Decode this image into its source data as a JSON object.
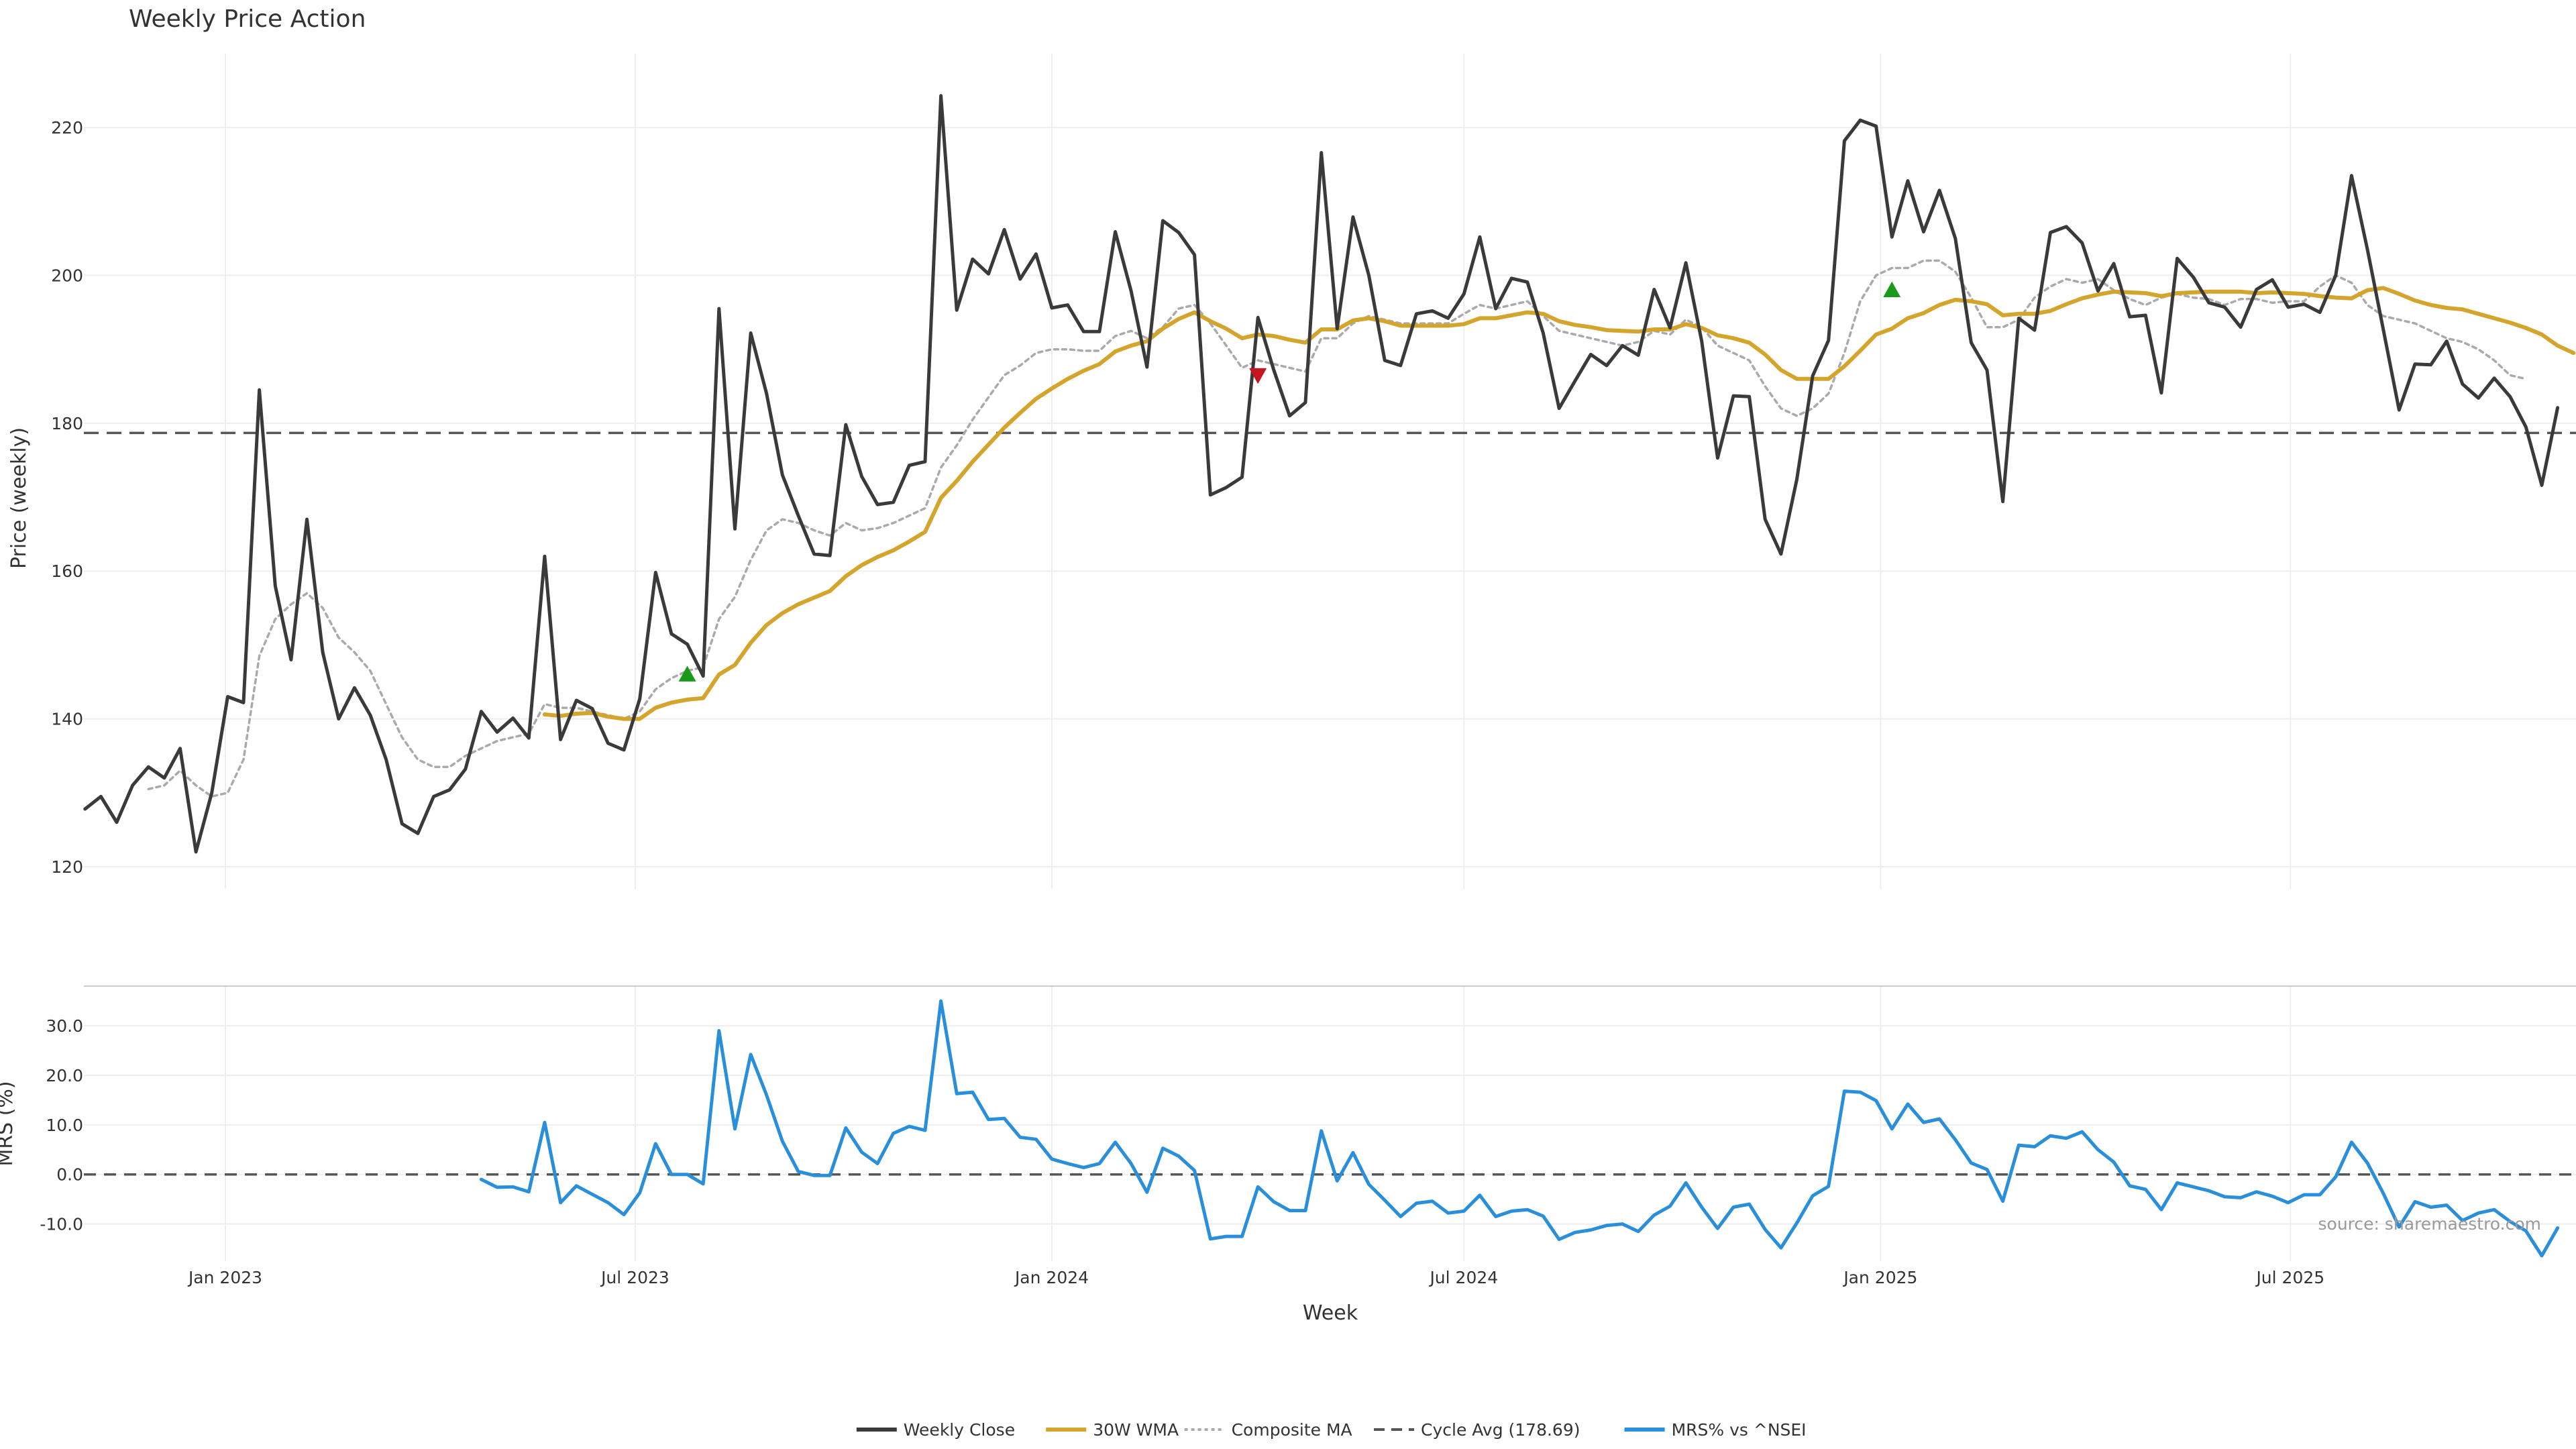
{
  "title": "Weekly Price Action",
  "source_note": "source: sharemaestro.com",
  "colors": {
    "close": "#3a3a3a",
    "wma": "#d4a52c",
    "composite": "#aaaaaa",
    "cycle": "#555555",
    "mrs": "#2a8fdb",
    "buy": "#1a9a1a",
    "sell": "#c8141e",
    "grid": "#eeeeee"
  },
  "chart_data": [
    {
      "type": "line",
      "title": "Weekly Price Action",
      "ylabel": "Price (weekly)",
      "xlabel": "",
      "ylim": [
        117,
        230
      ],
      "yticks": [
        120,
        140,
        160,
        180,
        200,
        220
      ],
      "grid": true,
      "x_start": "2022-10-31",
      "x_step_days": 7,
      "series": [
        {
          "name": "Weekly Close",
          "values": [
            127.8,
            129.5,
            126,
            131,
            133.5,
            132,
            136,
            122,
            130,
            143,
            142.2,
            184.5,
            158,
            148,
            167,
            149,
            140,
            144.2,
            140.5,
            134.5,
            125.8,
            124.5,
            129.5,
            130.4,
            133.2,
            141,
            138.2,
            140.1,
            137.4,
            162,
            137.2,
            142.5,
            141.4,
            136.7,
            135.8,
            142.7,
            159.8,
            151.5,
            150.1,
            145.8,
            195.5,
            165.7,
            192.2,
            184,
            173,
            167.5,
            162.3,
            162.1,
            179.8,
            172.8,
            169,
            169.3,
            174.3,
            174.8,
            224.3,
            195.3,
            202.2,
            200.2,
            206.2,
            199.5,
            202.9,
            195.6,
            196,
            192.4,
            192.4,
            205.9,
            197.9,
            187.6,
            207.4,
            205.8,
            202.8,
            170.3,
            171.3,
            172.7,
            194.3,
            187.2,
            181,
            182.8,
            216.6,
            192.8,
            207.9,
            200,
            188.5,
            187.8,
            194.8,
            195.2,
            194.2,
            197.5,
            205.2,
            195.5,
            199.6,
            199.1,
            192.2,
            182,
            185.7,
            189.3,
            187.8,
            190.5,
            189.2,
            198.1,
            192.9,
            201.7,
            191.1,
            175.3,
            183.7,
            183.6,
            167,
            162.3,
            172.4,
            186.4,
            191.2,
            218.2,
            221,
            220.2,
            205.2,
            212.8,
            205.9,
            211.5,
            205,
            190.9,
            187.2,
            169.4,
            194.2,
            192.6,
            205.8,
            206.6,
            204.4,
            197.9,
            201.6,
            194.4,
            194.6,
            184.1,
            202.3,
            199.8,
            196.3,
            195.7,
            193,
            198.1,
            199.4,
            195.7,
            196.1,
            195,
            200,
            213.5,
            203.5,
            192.7,
            181.8,
            188,
            187.9,
            191.1,
            185.3,
            183.4,
            186.1,
            183.6,
            179.5,
            171.6,
            182.1
          ]
        },
        {
          "name": "30W WMA",
          "values": [
            null,
            null,
            null,
            null,
            null,
            null,
            null,
            null,
            null,
            null,
            null,
            null,
            null,
            null,
            null,
            null,
            null,
            null,
            null,
            null,
            null,
            null,
            null,
            null,
            null,
            null,
            null,
            null,
            null,
            140.6,
            140.4,
            140.7,
            140.8,
            140.3,
            140,
            140,
            141.5,
            142.2,
            142.6,
            142.8,
            146,
            147.3,
            150.3,
            152.7,
            154.3,
            155.5,
            156.4,
            157.3,
            159.3,
            160.8,
            161.9,
            162.8,
            164,
            165.3,
            169.9,
            172.2,
            174.8,
            177.1,
            179.4,
            181.4,
            183.3,
            184.7,
            186,
            187.1,
            188,
            189.7,
            190.5,
            191.1,
            192.8,
            194.1,
            195,
            193.8,
            192.8,
            191.5,
            192,
            191.8,
            191.3,
            190.9,
            192.7,
            192.7,
            193.9,
            194.2,
            193.8,
            193.2,
            193.2,
            193.2,
            193.2,
            193.4,
            194.2,
            194.2,
            194.6,
            195,
            194.8,
            193.8,
            193.3,
            193,
            192.6,
            192.5,
            192.4,
            192.7,
            192.7,
            193.4,
            192.9,
            191.9,
            191.5,
            190.9,
            189.3,
            187.2,
            186,
            186,
            186,
            187.7,
            189.8,
            192,
            192.8,
            194.2,
            194.9,
            196,
            196.7,
            196.5,
            196.1,
            194.6,
            194.8,
            194.8,
            195.2,
            196.1,
            196.9,
            197.4,
            197.8,
            197.7,
            197.6,
            197.2,
            197.6,
            197.7,
            197.8,
            197.8,
            197.8,
            197.6,
            197.7,
            197.6,
            197.5,
            197.2,
            197,
            196.9,
            198,
            198.3,
            197.5,
            196.6,
            196,
            195.6,
            195.4,
            194.8,
            194.2,
            193.6,
            192.9,
            192,
            190.5,
            189.5
          ]
        },
        {
          "name": "Composite MA",
          "values": [
            null,
            null,
            null,
            null,
            130.5,
            131,
            133,
            131,
            129.5,
            130,
            134.5,
            148.5,
            153.5,
            155.5,
            157,
            155,
            151,
            149,
            146.5,
            142,
            137.5,
            134.5,
            133.5,
            133.5,
            135,
            136,
            137,
            137.5,
            138,
            142,
            141.5,
            141.5,
            141,
            140.5,
            140,
            141,
            144,
            145.5,
            146.5,
            147,
            153.5,
            156.5,
            161.5,
            165.5,
            167,
            166.5,
            165.5,
            164.8,
            166.5,
            165.5,
            165.8,
            166.5,
            167.5,
            168.5,
            174,
            177,
            180.5,
            183.5,
            186.5,
            187.8,
            189.5,
            190,
            190,
            189.8,
            189.8,
            191.8,
            192.5,
            191.5,
            193,
            195.5,
            196,
            193.5,
            190.5,
            187.5,
            188.5,
            188,
            187.5,
            187,
            191.5,
            191.5,
            193.5,
            194.5,
            194,
            193.5,
            193.5,
            193.5,
            193.5,
            194.8,
            196,
            195.5,
            196,
            196.5,
            194.5,
            192.5,
            192,
            191.5,
            191,
            190.5,
            191,
            192.5,
            192,
            194,
            193,
            190.5,
            189.5,
            188.5,
            185,
            182,
            181,
            182,
            184,
            189.5,
            196.5,
            200,
            201,
            201,
            202,
            202,
            200.5,
            197,
            193,
            193,
            194,
            197,
            198.5,
            199.5,
            199,
            199.5,
            198,
            196.8,
            196,
            197,
            197.5,
            197,
            196.8,
            196,
            196.8,
            196.8,
            196.3,
            196.5,
            196.5,
            198.5,
            200,
            199,
            196,
            194.5,
            194,
            193.5,
            192.5,
            191.5,
            191,
            190,
            188.5,
            186.5,
            186
          ]
        },
        {
          "name": "Cycle Avg (178.69)",
          "constant": 178.69
        }
      ],
      "markers": [
        {
          "type": "buy",
          "x_index": 38,
          "value": 146
        },
        {
          "type": "sell",
          "x_index": 74,
          "value": 186.5
        },
        {
          "type": "buy",
          "x_index": 114,
          "value": 198
        }
      ]
    },
    {
      "type": "line",
      "title": "",
      "ylabel": "MRS (%)",
      "xlabel": "Week",
      "ylim": [
        -17.5,
        38
      ],
      "yticks": [
        -10,
        0,
        10,
        20,
        30
      ],
      "yticklabels": [
        "-10.0",
        "0.0",
        "10.0",
        "20.0",
        "30.0"
      ],
      "xticks": [
        {
          "date": "2023-01-01",
          "label": "Jan 2023"
        },
        {
          "date": "2023-07-01",
          "label": "Jul 2023"
        },
        {
          "date": "2024-01-01",
          "label": "Jan 2024"
        },
        {
          "date": "2024-07-01",
          "label": "Jul 2024"
        },
        {
          "date": "2025-01-01",
          "label": "Jan 2025"
        },
        {
          "date": "2025-07-01",
          "label": "Jul 2025"
        }
      ],
      "grid": true,
      "zero_line": 0,
      "series": [
        {
          "name": "MRS% vs ^NSEI",
          "values": [
            null,
            null,
            null,
            null,
            null,
            null,
            null,
            null,
            null,
            null,
            null,
            null,
            null,
            null,
            null,
            null,
            null,
            null,
            null,
            null,
            null,
            null,
            null,
            null,
            null,
            -1,
            -2.6,
            -2.5,
            -3.5,
            10.5,
            -5.7,
            -2.3,
            -4,
            -5.7,
            -8.1,
            -3.7,
            6.2,
            0,
            0,
            -1.9,
            29,
            9.2,
            24.2,
            16,
            6.7,
            0.6,
            -0.2,
            -0.2,
            9.4,
            4.5,
            2.2,
            8.3,
            9.7,
            8.9,
            35,
            16.3,
            16.6,
            11.1,
            11.3,
            7.5,
            7.1,
            3.1,
            2.2,
            1.4,
            2.2,
            6.5,
            2.2,
            -3.6,
            5.3,
            3.7,
            0.8,
            -13,
            -12.5,
            -12.5,
            -2.5,
            -5.5,
            -7.3,
            -7.3,
            8.8,
            -1.3,
            4.4,
            -2,
            -5.2,
            -8.5,
            -5.8,
            -5.4,
            -7.8,
            -7.4,
            -4.2,
            -8.5,
            -7.4,
            -7.1,
            -8.4,
            -13.1,
            -11.7,
            -11.2,
            -10.3,
            -10,
            -11.5,
            -8.2,
            -6.4,
            -1.7,
            -6.6,
            -10.9,
            -6.6,
            -6,
            -11.1,
            -14.8,
            -9.8,
            -4.3,
            -2.4,
            16.8,
            16.6,
            14.9,
            9.2,
            14.2,
            10.5,
            11.2,
            7,
            2.3,
            1,
            -5.4,
            5.9,
            5.6,
            7.8,
            7.3,
            8.6,
            5,
            2.5,
            -2.3,
            -3,
            -7.1,
            -1.7,
            -2.5,
            -3.3,
            -4.5,
            -4.7,
            -3.5,
            -4.4,
            -5.7,
            -4.1,
            -4.1,
            -0.5,
            6.5,
            2.3,
            -3.8,
            -10.6,
            -5.5,
            -6.6,
            -6.2,
            -9.3,
            -7.8,
            -7.1,
            -9.5,
            -11.4,
            -16.4,
            -10.8
          ]
        }
      ]
    }
  ],
  "legend": {
    "placement": "bottom-center",
    "items": [
      {
        "label": "Weekly Close",
        "style": "solid",
        "color": "#3a3a3a"
      },
      {
        "label": "30W WMA",
        "style": "solid",
        "color": "#d4a52c"
      },
      {
        "label": "Composite MA",
        "style": "dotted",
        "color": "#aaaaaa"
      },
      {
        "label": "Cycle Avg (178.69)",
        "style": "dashed",
        "color": "#555555"
      },
      {
        "label": "MRS% vs ^NSEI",
        "style": "solid",
        "color": "#2a8fdb"
      }
    ]
  }
}
